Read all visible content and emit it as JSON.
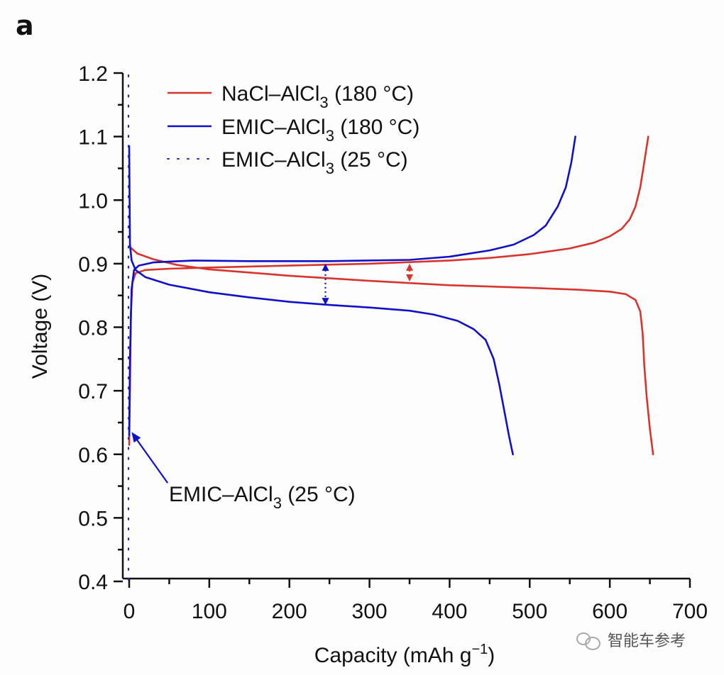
{
  "panel_label": "a",
  "watermark": {
    "text": "智能车参考",
    "icon": "wechat-icon"
  },
  "chart_data": {
    "type": "line",
    "title": "",
    "xlabel": "Capacity (mAh g",
    "xlabel_sup": "−1",
    "xlabel_close": ")",
    "ylabel": "Voltage (V)",
    "xlim": [
      0,
      700
    ],
    "ylim": [
      0.4,
      1.2
    ],
    "xticks": [
      0,
      100,
      200,
      300,
      400,
      500,
      600,
      700
    ],
    "xtick_labels": [
      "0",
      "100",
      "200",
      "300",
      "400",
      "500",
      "600",
      "700"
    ],
    "xminor_step": 50,
    "yticks": [
      0.4,
      0.5,
      0.6,
      0.7,
      0.8,
      0.9,
      1.0,
      1.1,
      1.2
    ],
    "ytick_labels": [
      "0.4",
      "0.5",
      "0.6",
      "0.7",
      "0.8",
      "0.9",
      "1.0",
      "1.1",
      "1.2"
    ],
    "yminor_step": 0.05,
    "grid": false,
    "legend": {
      "placement": "top-left",
      "entries": [
        {
          "label_main": "NaCl–AlCl",
          "label_sub": "3",
          "label_tail": "  (180 °C)",
          "color": "#d9342b",
          "style": "solid"
        },
        {
          "label_main": "EMIC–AlCl",
          "label_sub": "3",
          "label_tail": " (180 °C)",
          "color": "#1010c8",
          "style": "solid"
        },
        {
          "label_main": "EMIC–AlCl",
          "label_sub": "3",
          "label_tail": " (25 °C)",
          "color": "#2a2aa8",
          "style": "dotted"
        }
      ]
    },
    "series": [
      {
        "name": "NaCl–AlCl3 (180 °C) charge",
        "color": "#d9342b",
        "style": "solid",
        "points": [
          [
            0,
            0.615
          ],
          [
            1,
            0.7
          ],
          [
            2,
            0.82
          ],
          [
            4,
            0.87
          ],
          [
            8,
            0.885
          ],
          [
            20,
            0.89
          ],
          [
            50,
            0.892
          ],
          [
            100,
            0.894
          ],
          [
            200,
            0.897
          ],
          [
            300,
            0.9
          ],
          [
            400,
            0.905
          ],
          [
            450,
            0.909
          ],
          [
            500,
            0.915
          ],
          [
            550,
            0.924
          ],
          [
            580,
            0.933
          ],
          [
            600,
            0.943
          ],
          [
            615,
            0.955
          ],
          [
            625,
            0.97
          ],
          [
            632,
            0.99
          ],
          [
            638,
            1.02
          ],
          [
            643,
            1.06
          ],
          [
            648,
            1.1
          ]
        ]
      },
      {
        "name": "NaCl–AlCl3 (180 °C) discharge",
        "color": "#d9342b",
        "style": "solid",
        "points": [
          [
            2,
            0.925
          ],
          [
            10,
            0.916
          ],
          [
            30,
            0.907
          ],
          [
            60,
            0.898
          ],
          [
            100,
            0.891
          ],
          [
            200,
            0.881
          ],
          [
            300,
            0.873
          ],
          [
            400,
            0.866
          ],
          [
            500,
            0.862
          ],
          [
            560,
            0.859
          ],
          [
            600,
            0.856
          ],
          [
            620,
            0.852
          ],
          [
            632,
            0.843
          ],
          [
            638,
            0.825
          ],
          [
            641,
            0.79
          ],
          [
            643,
            0.74
          ],
          [
            646,
            0.69
          ],
          [
            650,
            0.64
          ],
          [
            654,
            0.6
          ]
        ]
      },
      {
        "name": "EMIC–AlCl3 (180 °C) charge",
        "color": "#1010c8",
        "style": "solid",
        "points": [
          [
            0,
            0.63
          ],
          [
            1,
            0.75
          ],
          [
            3,
            0.86
          ],
          [
            6,
            0.89
          ],
          [
            12,
            0.897
          ],
          [
            30,
            0.902
          ],
          [
            80,
            0.905
          ],
          [
            150,
            0.904
          ],
          [
            250,
            0.904
          ],
          [
            350,
            0.906
          ],
          [
            400,
            0.911
          ],
          [
            450,
            0.921
          ],
          [
            480,
            0.93
          ],
          [
            505,
            0.945
          ],
          [
            520,
            0.96
          ],
          [
            535,
            0.99
          ],
          [
            545,
            1.02
          ],
          [
            552,
            1.06
          ],
          [
            557,
            1.1
          ]
        ]
      },
      {
        "name": "EMIC–AlCl3 (180 °C) discharge",
        "color": "#1010c8",
        "style": "solid",
        "points": [
          [
            0,
            1.085
          ],
          [
            0.5,
            1.0
          ],
          [
            1,
            0.93
          ],
          [
            3,
            0.905
          ],
          [
            8,
            0.89
          ],
          [
            20,
            0.879
          ],
          [
            50,
            0.867
          ],
          [
            100,
            0.855
          ],
          [
            150,
            0.847
          ],
          [
            200,
            0.84
          ],
          [
            250,
            0.835
          ],
          [
            300,
            0.831
          ],
          [
            350,
            0.826
          ],
          [
            380,
            0.82
          ],
          [
            410,
            0.81
          ],
          [
            430,
            0.797
          ],
          [
            445,
            0.78
          ],
          [
            455,
            0.75
          ],
          [
            462,
            0.71
          ],
          [
            468,
            0.67
          ],
          [
            474,
            0.63
          ],
          [
            479,
            0.6
          ]
        ]
      },
      {
        "name": "EMIC–AlCl3 (25 °C)",
        "color": "#2a2aa8",
        "style": "dotted",
        "points": [
          [
            0,
            0.4
          ],
          [
            0,
            1.2
          ]
        ]
      }
    ],
    "annotations": [
      {
        "type": "double-arrow",
        "x": 245,
        "y1": 0.9,
        "y2": 0.835,
        "color": "#1010c8",
        "style": "dotted"
      },
      {
        "type": "double-arrow",
        "x": 350,
        "y1": 0.9,
        "y2": 0.872,
        "color": "#d9342b",
        "style": "dotted"
      },
      {
        "type": "arrow-label",
        "text_main": "EMIC–AlCl",
        "text_sub": "3",
        "text_tail": " (25 °C)",
        "from": [
          48,
          0.555
        ],
        "to": [
          3,
          0.635
        ],
        "color": "#1010c8"
      }
    ]
  }
}
